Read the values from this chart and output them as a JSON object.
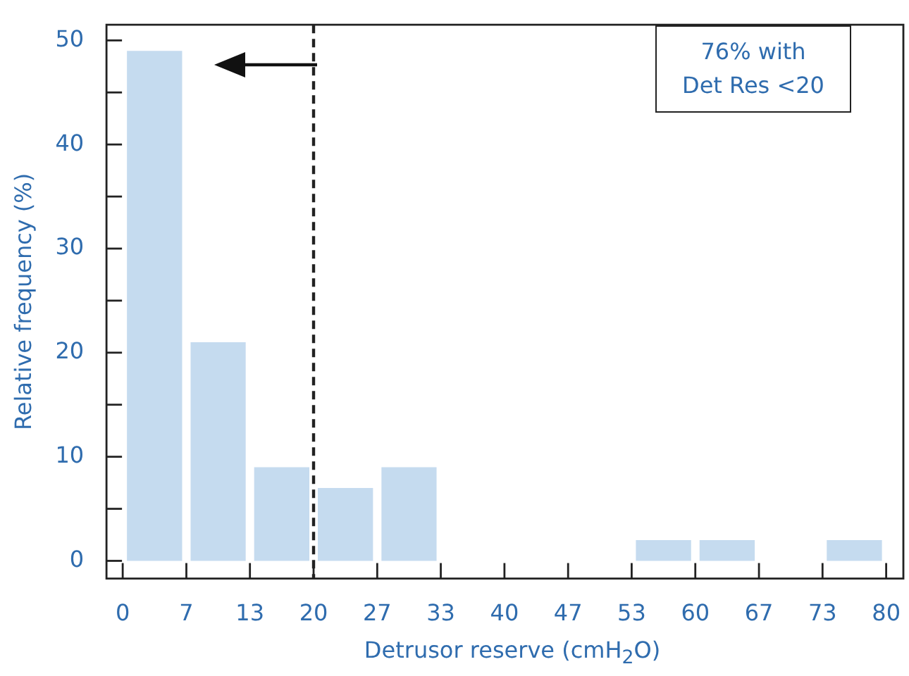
{
  "chart_data": {
    "type": "histogram",
    "xlabel": "Detrusor reserve (cmH$_{2}$O)",
    "ylabel": "Relative frequency (%)",
    "bins": [
      0,
      6.67,
      13.33,
      20,
      26.67,
      33.33,
      40,
      46.67,
      53.33,
      60,
      66.67,
      73.33,
      80
    ],
    "values": [
      49,
      21,
      9,
      7,
      9,
      0,
      0,
      0,
      2,
      2,
      0,
      2
    ],
    "color": "#c5dbef",
    "xlim": [
      -1.7,
      81.8
    ],
    "xticks": [
      0,
      {
        "value": 6.67,
        "label": "7"
      },
      {
        "value": 13.33,
        "label": "13"
      },
      20,
      {
        "value": 26.67,
        "label": "27"
      },
      {
        "value": 33.33,
        "label": "33"
      },
      40,
      {
        "value": 46.67,
        "label": "47"
      },
      {
        "value": 53.33,
        "label": "53"
      },
      60,
      {
        "value": 66.67,
        "label": "67"
      },
      {
        "value": 73.33,
        "label": "73"
      },
      80
    ],
    "ylim": [
      -1.7,
      51.5
    ],
    "yticks": [
      0,
      {
        "value": 5,
        "label": null
      },
      10,
      {
        "value": 15,
        "label": null
      },
      20,
      {
        "value": 25,
        "label": null
      },
      30,
      {
        "value": 35,
        "label": null
      },
      40,
      {
        "value": 45,
        "label": null
      },
      50
    ],
    "ref_lines": [
      {
        "axis": "x",
        "value": 20,
        "label": null,
        "color": "#222222",
        "line_style": "dashed"
      }
    ],
    "annotations": [
      "76% with\nDet Res <20"
    ],
    "legend": false
  }
}
